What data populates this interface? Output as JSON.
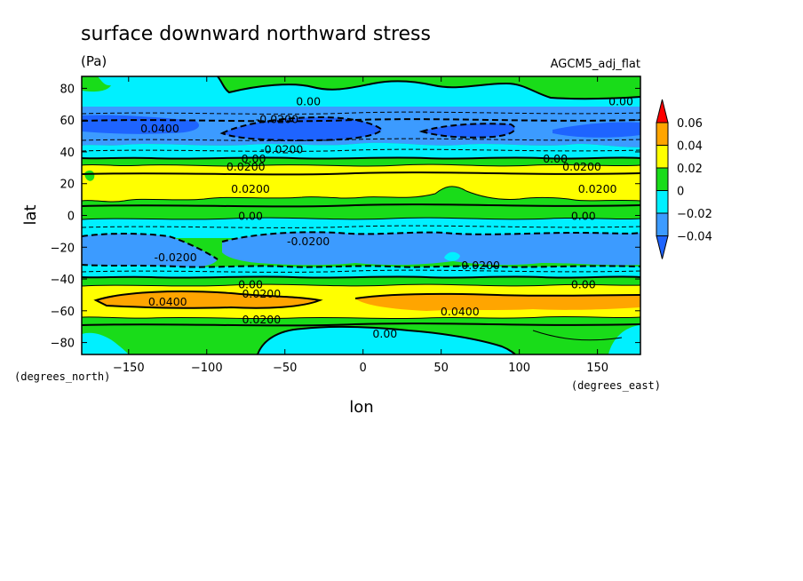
{
  "chart_data": {
    "type": "heatmap",
    "title": "surface downward northward stress",
    "units": "(Pa)",
    "source": "AGCM5_adj_flat",
    "xlabel": "lon",
    "ylabel": "lat",
    "x_unit_label": "(degrees_east)",
    "y_unit_label": "(degrees_north)",
    "xlim": [
      -180,
      177.5
    ],
    "ylim": [
      -87.5,
      87.5
    ],
    "x_ticks": [
      -150,
      -100,
      -50,
      0,
      50,
      100,
      150
    ],
    "x_tick_labels": [
      "−150",
      "−100",
      "−50",
      "0",
      "50",
      "100",
      "150"
    ],
    "y_ticks": [
      80,
      60,
      40,
      20,
      0,
      -20,
      -40,
      -60,
      -80
    ],
    "y_tick_labels": [
      "80",
      "60",
      "40",
      "20",
      "0",
      "−20",
      "−40",
      "−60",
      "−80"
    ],
    "colorbar": {
      "levels": [
        -0.04,
        -0.02,
        0,
        0.02,
        0.04,
        0.06
      ],
      "labels": [
        "−0.04",
        "−0.02",
        "0",
        "0.02",
        "0.04",
        "0.06"
      ],
      "colors": [
        "#1e64ff",
        "#3c9bff",
        "#00f0ff",
        "#19dc19",
        "#ffff00",
        "#ffa500",
        "#ff0000"
      ]
    },
    "zonal_bands": [
      {
        "lat": [
          70,
          87.5
        ],
        "class": "-0.02..0"
      },
      {
        "lat": [
          62,
          70
        ],
        "class": "-0.02..0"
      },
      {
        "lat": [
          46,
          62
        ],
        "class": "-0.04..-0.02"
      },
      {
        "lat": [
          38,
          46
        ],
        "class": "-0.02..0"
      },
      {
        "lat": [
          31,
          38
        ],
        "class": "0..0.02"
      },
      {
        "lat": [
          10,
          31
        ],
        "class": "0.02..0.04"
      },
      {
        "lat": [
          -3,
          10
        ],
        "class": "0..0.02"
      },
      {
        "lat": [
          -10,
          -3
        ],
        "class": "-0.02..0"
      },
      {
        "lat": [
          -34,
          -10
        ],
        "class": "-0.04..-0.02"
      },
      {
        "lat": [
          -43,
          -34
        ],
        "class": "-0.02..0"
      },
      {
        "lat": [
          -48,
          -43
        ],
        "class": "0..0.02"
      },
      {
        "lat": [
          -64,
          -48
        ],
        "class": "0.02..0.04"
      },
      {
        "lat": [
          -70,
          -64
        ],
        "class": "0..0.02"
      },
      {
        "lat": [
          -87.5,
          -70
        ],
        "class": "-0.02..0"
      }
    ],
    "contour_labels": [
      {
        "text": "0.00",
        "lon": -35,
        "lat": 72
      },
      {
        "text": "0.00",
        "lon": 165,
        "lat": 72
      },
      {
        "text": "0.0400",
        "lon": -130,
        "lat": 55
      },
      {
        "text": "-0.0200",
        "lon": -55,
        "lat": 61
      },
      {
        "text": "-0.0200",
        "lon": -52,
        "lat": 42
      },
      {
        "text": "0.00",
        "lon": -70,
        "lat": 36
      },
      {
        "text": "0.0200",
        "lon": -75,
        "lat": 31
      },
      {
        "text": "0.00",
        "lon": 123,
        "lat": 36
      },
      {
        "text": "0.0200",
        "lon": 140,
        "lat": 31
      },
      {
        "text": "0.0200",
        "lon": -72,
        "lat": 17
      },
      {
        "text": "0.0200",
        "lon": 150,
        "lat": 17
      },
      {
        "text": "0.00",
        "lon": -72,
        "lat": 0
      },
      {
        "text": "0.00",
        "lon": 141,
        "lat": 0
      },
      {
        "text": "-0.0200",
        "lon": -35,
        "lat": -16
      },
      {
        "text": "-0.0200",
        "lon": -120,
        "lat": -26
      },
      {
        "text": "-0.0200",
        "lon": 74,
        "lat": -31
      },
      {
        "text": "0.00",
        "lon": -72,
        "lat": -43
      },
      {
        "text": "0.0200",
        "lon": -65,
        "lat": -49
      },
      {
        "text": "0.00",
        "lon": 141,
        "lat": -43
      },
      {
        "text": "0.0400",
        "lon": -125,
        "lat": -54
      },
      {
        "text": "0.0400",
        "lon": 62,
        "lat": -60
      },
      {
        "text": "0.0200",
        "lon": -65,
        "lat": -65
      },
      {
        "text": "0.00",
        "lon": 14,
        "lat": -74
      }
    ]
  }
}
